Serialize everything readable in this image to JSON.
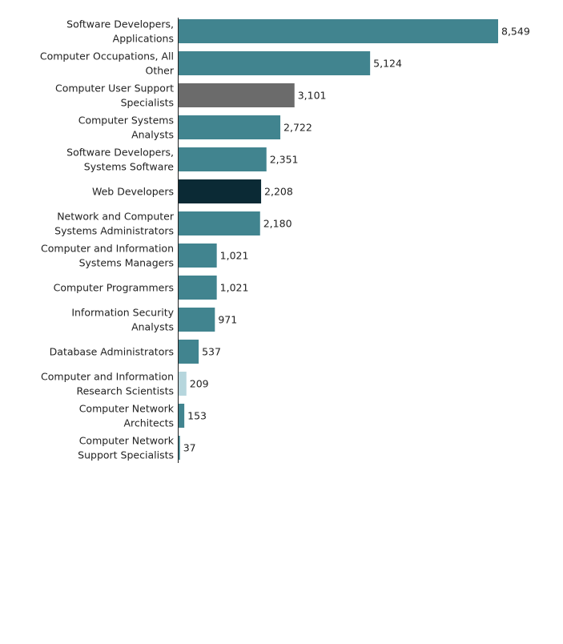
{
  "chart_data": {
    "type": "bar",
    "orientation": "horizontal",
    "title": "",
    "xlabel": "",
    "ylabel": "",
    "grid": false,
    "categories": [
      "Software Developers, Applications",
      "Computer Occupations, All Other",
      "Computer User Support Specialists",
      "Computer Systems Analysts",
      "Software Developers, Systems Software",
      "Web Developers",
      "Network and Computer Systems Administrators",
      "Computer and Information Systems Managers",
      "Computer Programmers",
      "Information Security Analysts",
      "Database Administrators",
      "Computer and Information Research Scientists",
      "Computer Network Architects",
      "Computer Network Support Specialists"
    ],
    "label_lines": [
      [
        "Software Developers,",
        "Applications"
      ],
      [
        "Computer Occupations, All",
        "Other"
      ],
      [
        "Computer User Support",
        "Specialists"
      ],
      [
        "Computer Systems",
        "Analysts"
      ],
      [
        "Software Developers,",
        "Systems Software"
      ],
      [
        "Web Developers"
      ],
      [
        "Network and Computer",
        "Systems Administrators"
      ],
      [
        "Computer and Information",
        "Systems Managers"
      ],
      [
        "Computer Programmers"
      ],
      [
        "Information Security",
        "Analysts"
      ],
      [
        "Database Administrators"
      ],
      [
        "Computer and Information",
        "Research Scientists"
      ],
      [
        "Computer Network",
        "Architects"
      ],
      [
        "Computer Network",
        "Support Specialists"
      ]
    ],
    "values": [
      8549,
      5124,
      3101,
      2722,
      2351,
      2208,
      2180,
      1021,
      1021,
      971,
      537,
      209,
      153,
      37
    ],
    "value_labels": [
      "8,549",
      "5,124",
      "3,101",
      "2,722",
      "2,351",
      "2,208",
      "2,180",
      "1,021",
      "1,021",
      "971",
      "537",
      "209",
      "153",
      "37"
    ],
    "colors": [
      "#41848f",
      "#41848f",
      "#6b6b6b",
      "#41848f",
      "#41848f",
      "#0b2a35",
      "#41848f",
      "#41848f",
      "#41848f",
      "#41848f",
      "#41848f",
      "#b6d6dd",
      "#41848f",
      "#41848f"
    ],
    "xlim": [
      0,
      8549
    ]
  }
}
